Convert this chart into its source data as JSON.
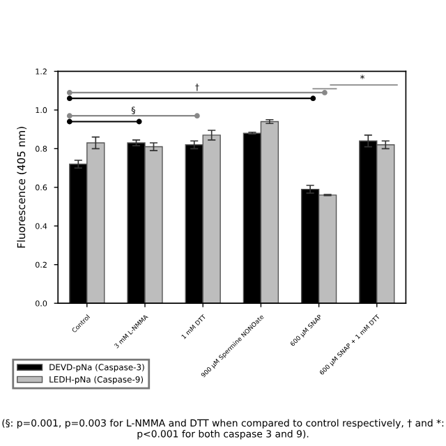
{
  "chart_data": {
    "type": "bar",
    "ylabel": "Fluorescence (405 nm)",
    "categories": [
      "Control",
      "3 mM L-NMMA",
      "1 mM DTT",
      "900 µM Spermine NONOate",
      "600 µM SNAP",
      "600 µM SNAP + 1 mM DTT"
    ],
    "series": [
      {
        "name": "DEVD-pNa (Caspase-3)",
        "color": "#000000",
        "values": [
          0.72,
          0.83,
          0.82,
          0.88,
          0.59,
          0.84
        ],
        "errors": [
          0.02,
          0.015,
          0.02,
          0.005,
          0.02,
          0.03
        ]
      },
      {
        "name": "LEDH-pNa (Caspase-9)",
        "color": "#bdbdbd",
        "values": [
          0.83,
          0.81,
          0.87,
          0.94,
          0.56,
          0.82
        ],
        "errors": [
          0.03,
          0.02,
          0.025,
          0.01,
          0.003,
          0.02
        ]
      }
    ],
    "ylim": [
      0,
      1.2
    ],
    "yticks": [
      {
        "value": 0,
        "label": "0.0"
      },
      0.2,
      0.4,
      0.6,
      0.8,
      {
        "value": 1,
        "label": "1.0"
      },
      1.2
    ],
    "grid": false,
    "legend": "bottom left",
    "annotations": [
      "§",
      "†",
      "*",
      "(§: p=0.001, p=0.003 for L-NMMA and DTT when compared to control respectively, † and *: p<0.001 for both caspase 3 and 9)."
    ]
  }
}
